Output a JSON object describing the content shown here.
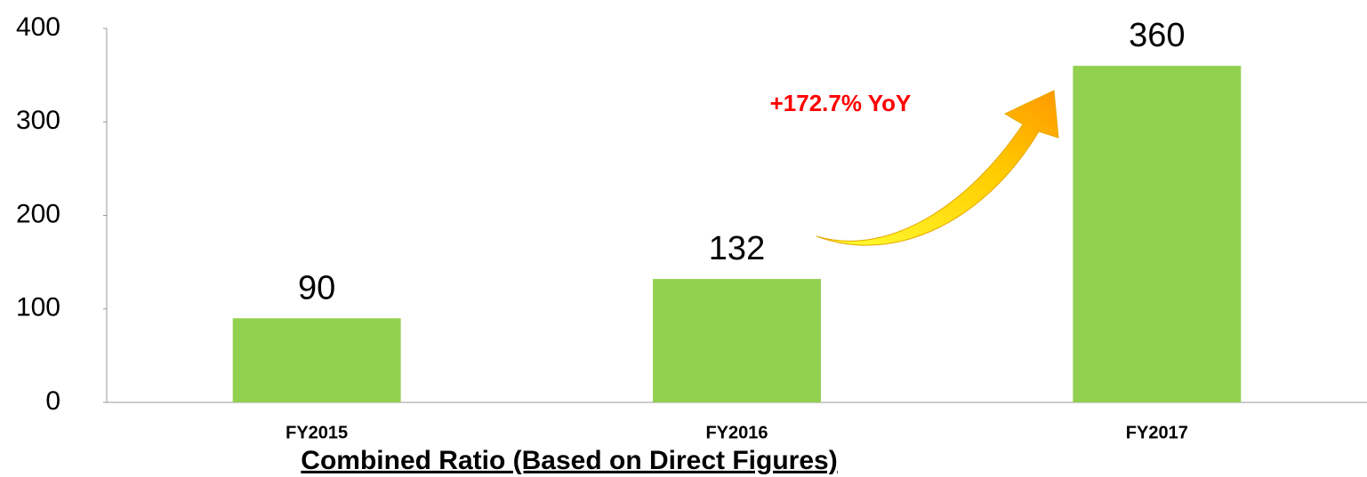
{
  "chart_data": {
    "type": "bar",
    "title": "Combined Ratio (Based on Direct Figures)",
    "categories": [
      "FY2015",
      "FY2016",
      "FY2017"
    ],
    "values": [
      90,
      132,
      360
    ],
    "color": "#92d050",
    "ylim": [
      0,
      400
    ],
    "yticks": [
      0,
      100,
      200,
      300,
      400
    ],
    "annotation": "+172.7% YoY"
  }
}
